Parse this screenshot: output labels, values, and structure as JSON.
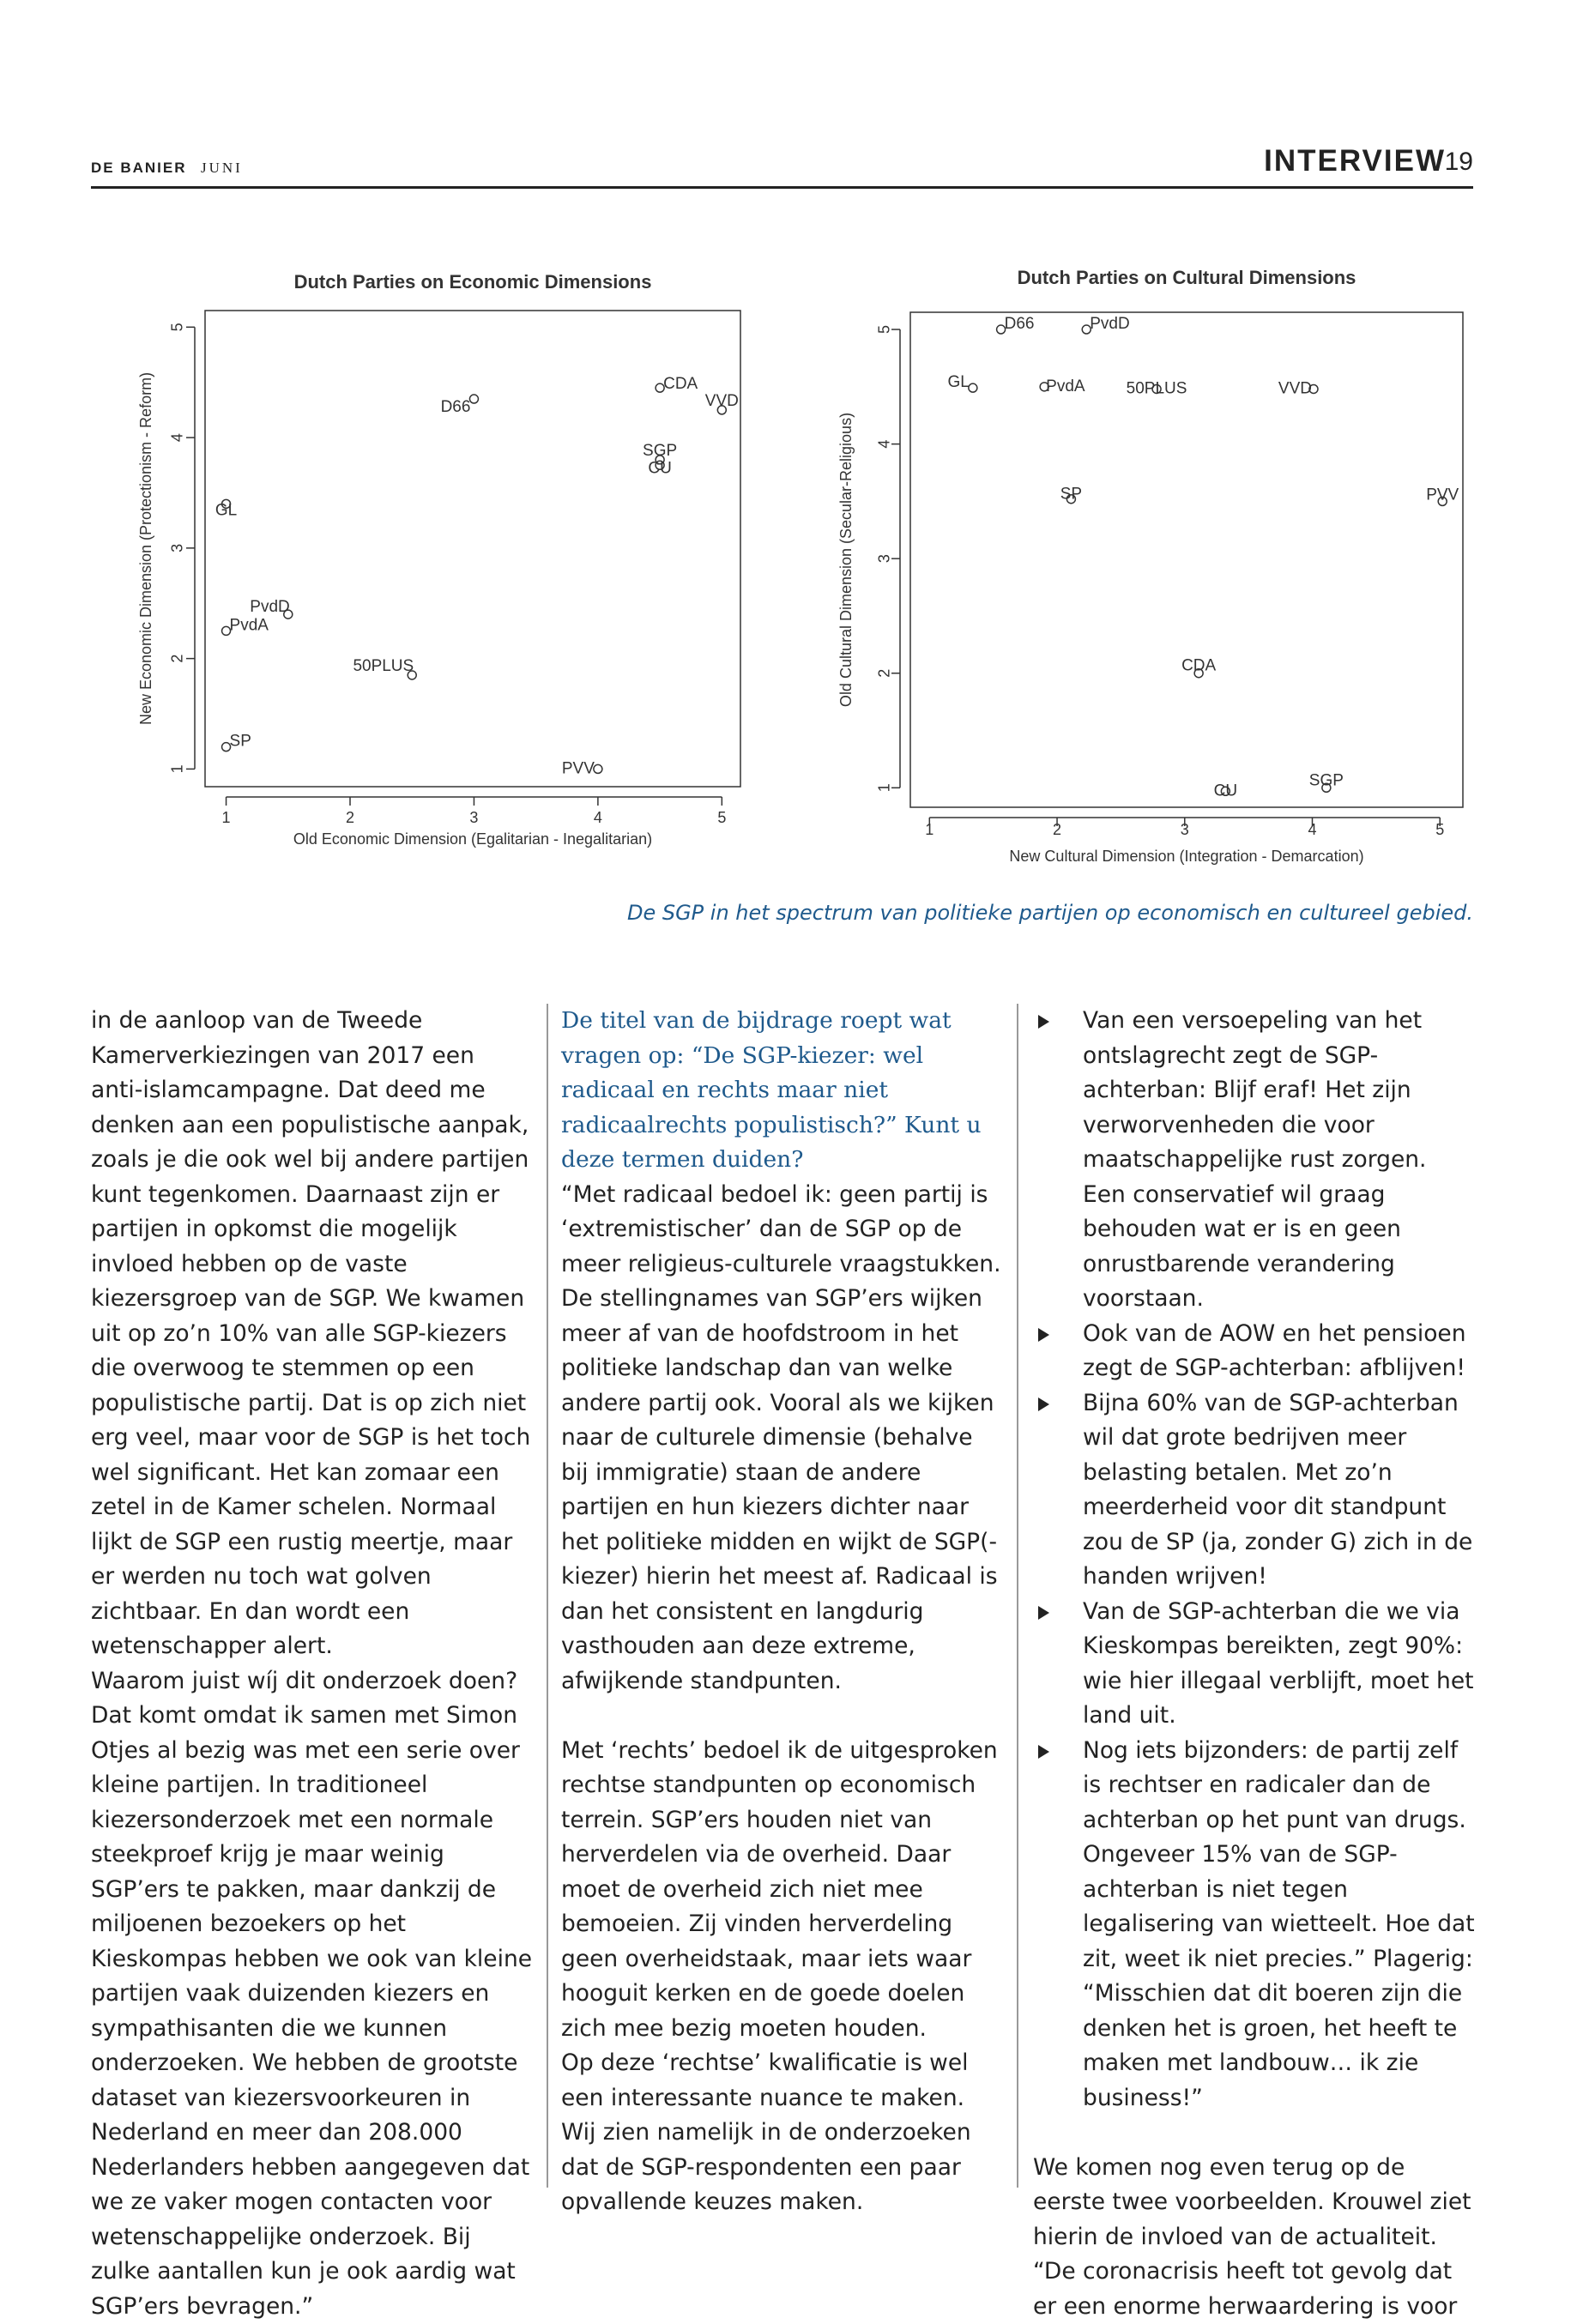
{
  "header": {
    "publication": "DE BANIER",
    "month": "JUNI",
    "section": "INTERVIEW",
    "page": 19
  },
  "chart_data": [
    {
      "type": "scatter",
      "title": "Dutch Parties on Economic Dimensions",
      "x_label": "Old Economic Dimension (Egalitarian - Inegalitarian)",
      "y_label": "New Economic Dimension (Protectionism - Reform)",
      "point_labels": [
        "D66",
        "CDA",
        "VVD",
        "SGP",
        "CU",
        "GL",
        "PvdD",
        "PvdA",
        "50PLUS",
        "SP",
        "PVV"
      ],
      "x": [
        3.0,
        4.5,
        5.0,
        4.5,
        4.5,
        1.0,
        1.5,
        1.0,
        2.5,
        1.0,
        4.0
      ],
      "values": [
        4.35,
        4.45,
        4.25,
        3.8,
        3.75,
        3.4,
        2.4,
        2.25,
        1.85,
        1.2,
        1.0
      ],
      "xlim": [
        0.83,
        5.15
      ],
      "ylim": [
        0.84,
        5.15
      ],
      "xticks": [
        1,
        2,
        3,
        4,
        5
      ],
      "yticks": [
        1,
        2,
        3,
        4,
        5
      ],
      "color": "#333333"
    },
    {
      "type": "scatter",
      "title": "Dutch Parties on Cultural Dimensions",
      "x_label": "New Cultural Dimension (Integration - Demarcation)",
      "y_label": "Old Cultural Dimension (Secular-Religious)",
      "point_labels": [
        "D66",
        "PvdD",
        "GL",
        "PvdA",
        "50PLUS",
        "VVD",
        "SP",
        "PVV",
        "CDA",
        "CU",
        "SGP"
      ],
      "x": [
        1.56,
        2.23,
        1.34,
        1.9,
        2.78,
        4.01,
        2.11,
        5.02,
        3.11,
        3.32,
        4.11
      ],
      "values": [
        5.0,
        5.0,
        4.49,
        4.5,
        4.48,
        4.48,
        3.52,
        3.5,
        2.0,
        0.97,
        1.0
      ],
      "xlim": [
        0.85,
        5.18
      ],
      "ylim": [
        0.83,
        5.15
      ],
      "xticks": [
        1,
        2,
        3,
        4,
        5
      ],
      "yticks": [
        1,
        2,
        3,
        4,
        5
      ],
      "color": "#333333"
    }
  ],
  "caption": "De SGP in het spectrum van politieke partijen op economisch en cultureel gebied.",
  "columns": [
    {
      "paragraphs": [
        "in de aanloop van de Tweede Kamerverkiezingen van 2017 een anti-islamcampagne. Dat deed me denken aan een populistische aanpak, zoals je die ook wel bij andere partijen kunt tegenkomen. Daarnaast zijn er partijen in opkomst die mogelijk invloed hebben op de vaste kiezersgroep van de SGP. We kwamen uit op zo’n 10% van alle SGP-kiezers die overwoog te stemmen op een populistische partij. Dat is op zich niet erg veel, maar voor de SGP is het toch wel significant. Het kan zomaar een zetel in de Kamer schelen. Normaal lijkt de SGP een rustig meertje, maar er werden nu toch wat golven zichtbaar. En dan wordt een wetenschapper alert.",
        "Waarom juist wíj dit onderzoek doen?",
        "Dat komt omdat ik samen met Simon Otjes al bezig was met een serie over kleine partijen. In traditioneel kiezersonderzoek met een normale steekproef krijg je maar weinig SGP’ers te pakken, maar dankzij de miljoenen bezoekers op het Kieskompas hebben we ook van kleine partijen vaak duizenden kiezers en sympathisanten die we kunnen onderzoeken. We hebben de grootste dataset van kiezersvoorkeuren in Nederland en meer dan 208.000 Nederlanders hebben aangegeven dat we ze vaker mogen contacten voor wetenschappelijke onderzoek. Bij zulke aantallen kun je ook aardig wat SGP’ers bevragen.”"
      ]
    },
    {
      "question": "De titel van de bijdrage roept wat vragen op: “De SGP-kiezer: wel radicaal en rechts maar niet radicaalrechts populistisch?” Kunt u deze termen duiden?",
      "paragraphs": [
        "“Met radicaal bedoel ik: geen partij is ‘extremistischer’ dan de SGP op de meer religieus-culturele vraagstukken. De stellingnames van SGP’ers wijken meer af van de hoofdstroom in het politieke landschap dan van welke andere partij ook. Vooral als we kijken naar de culturele dimensie (behalve bij immigratie) staan de andere partijen en hun kiezers dichter naar het politieke midden en wijkt de SGP(-kiezer) hierin het meest af. Radicaal is dan het consistent en langdurig vasthouden aan deze extreme, afwijkende standpunten.",
        "Met ‘rechts’ bedoel ik de uitgesproken rechtse standpunten op economisch terrein. SGP’ers houden niet van herverdelen via de overheid. Daar moet de overheid zich niet mee bemoeien. Zij vinden herverdeling geen overheidstaak, maar iets waar hooguit kerken en de goede doelen zich mee bezig moeten houden.",
        "Op deze ‘rechtse’ kwalificatie is wel een interessante nuance te maken. Wij zien namelijk in de onderzoeken dat de SGP-respondenten een paar opvallende keuzes maken."
      ]
    },
    {
      "bullets": [
        "Van een versoepeling van het ontslagrecht zegt de SGP-achterban: Blijf eraf! Het zijn verworvenheden die voor maatschappelijke rust zorgen. Een conservatief wil graag behouden wat er is en geen onrustbarende verandering voorstaan.",
        "Ook van de AOW en het pensioen zegt de SGP-achterban: afblijven!",
        "Bijna 60% van de SGP-achterban wil dat grote bedrijven meer belasting betalen. Met zo’n meerderheid voor dit standpunt zou de SP (ja, zonder G) zich in de handen wrijven!",
        "Van de SGP-achterban die we via Kieskompas bereikten, zegt 90%: wie hier illegaal verblijft, moet het land uit.",
        "Nog iets bijzonders: de partij zelf is rechtser en radicaler dan de achterban op het punt van drugs. Ongeveer 15% van de SGP-achterban is niet tegen legalisering van wietteelt. Hoe dat zit, weet ik niet precies.” Plagerig: “Misschien dat dit boeren zijn die denken het is groen, het heeft te maken met landbouw… ik zie business!”"
      ],
      "paragraphs": [
        "We komen nog even terug op de eerste twee voorbeelden. Krouwel ziet hierin de invloed van de actualiteit. “De coronacrisis heeft tot gevolg dat er een enorme herwaardering is voor"
      ]
    }
  ]
}
